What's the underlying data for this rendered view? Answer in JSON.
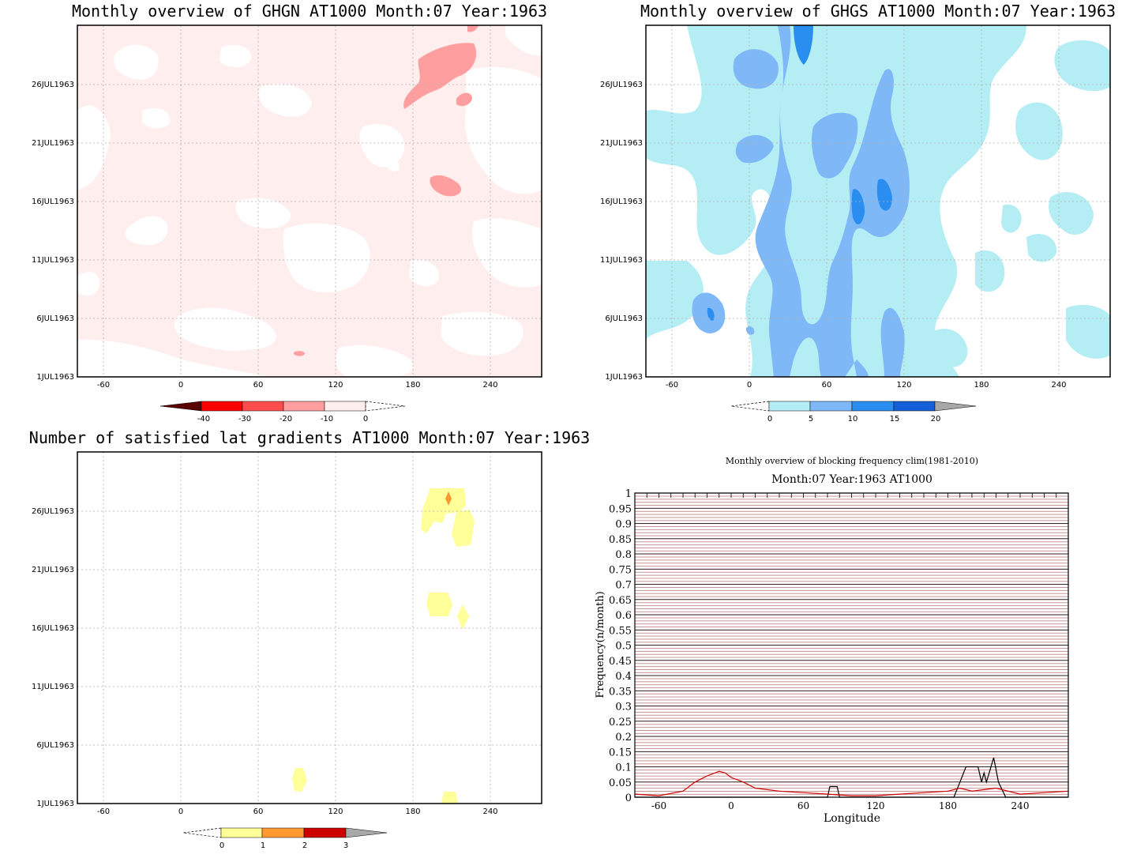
{
  "panels": {
    "ghgn": {
      "title": "Monthly overview of GHGN AT1000 Month:07 Year:1963"
    },
    "ghgs": {
      "title": "Monthly overview of GHGS AT1000 Month:07 Year:1963"
    },
    "lat": {
      "title": "Number of satisfied lat gradients AT1000 Month:07 Year:1963"
    },
    "freq": {
      "title": "Monthly overview of blocking frequency clim(1981-2010)",
      "subtitle": "Month:07 Year:1963  AT1000",
      "xlabel": "Longitude",
      "ylabel": "Frequency(n/month)"
    }
  },
  "date_ticks": [
    "26JUL1963",
    "21JUL1963",
    "16JUL1963",
    "11JUL1963",
    "6JUL1963",
    "1JUL1963"
  ],
  "lon_ticks": [
    "-60",
    "0",
    "60",
    "120",
    "180",
    "240"
  ],
  "colorbars": {
    "ghgn": {
      "labels": [
        "-40",
        "-30",
        "-20",
        "-10",
        "0"
      ],
      "colors": [
        "#ff0000",
        "#ff4d4d",
        "#ff9e9e",
        "#ffeeee"
      ],
      "end_color": "#5a0000"
    },
    "ghgs": {
      "labels": [
        "0",
        "5",
        "10",
        "15",
        "20"
      ],
      "colors": [
        "#b4eef4",
        "#7fb8f7",
        "#2a8ef0",
        "#1560d8"
      ],
      "end_color": "#a8a8a8"
    },
    "lat": {
      "labels": [
        "0",
        "1",
        "2",
        "3"
      ],
      "colors": [
        "#ffff99",
        "#ff9930",
        "#cc0000"
      ],
      "end_color": "#a8a8a8"
    }
  },
  "chart_data": [
    {
      "type": "heatmap",
      "title": "Monthly overview of GHGN AT1000 Month:07 Year:1963",
      "x_ticks": [
        -60,
        0,
        60,
        120,
        180,
        240
      ],
      "xlim": [
        -80,
        280
      ],
      "y_ticks": [
        "1JUL1963",
        "6JUL1963",
        "11JUL1963",
        "16JUL1963",
        "21JUL1963",
        "26JUL1963"
      ],
      "levels": [
        -40,
        -30,
        -20,
        -10,
        0
      ],
      "fill_colors": [
        "#ffeeee",
        "#ff9e9e"
      ]
    },
    {
      "type": "heatmap",
      "title": "Monthly overview of GHGS AT1000 Month:07 Year:1963",
      "x_ticks": [
        -60,
        0,
        60,
        120,
        180,
        240
      ],
      "xlim": [
        -80,
        280
      ],
      "y_ticks": [
        "1JUL1963",
        "6JUL1963",
        "11JUL1963",
        "16JUL1963",
        "21JUL1963",
        "26JUL1963"
      ],
      "levels": [
        0,
        5,
        10,
        15,
        20
      ],
      "fill_colors": [
        "#b4eef4",
        "#7fb8f7",
        "#2a8ef0",
        "#1560d8"
      ]
    },
    {
      "type": "heatmap",
      "title": "Number of satisfied lat gradients AT1000 Month:07 Year:1963",
      "x_ticks": [
        -60,
        0,
        60,
        120,
        180,
        240
      ],
      "xlim": [
        -80,
        280
      ],
      "y_ticks": [
        "1JUL1963",
        "6JUL1963",
        "11JUL1963",
        "16JUL1963",
        "21JUL1963",
        "26JUL1963"
      ],
      "levels": [
        0,
        1,
        2,
        3
      ],
      "fill_colors": [
        "#ffff99",
        "#ff9930"
      ]
    },
    {
      "type": "line",
      "title": "Monthly overview of blocking frequency clim(1981-2010)",
      "subtitle": "Month:07 Year:1963  AT1000",
      "xlabel": "Longitude",
      "ylabel": "Frequency(n/month)",
      "xlim": [
        -80,
        280
      ],
      "ylim": [
        0,
        1
      ],
      "x_ticks": [
        -60,
        0,
        60,
        120,
        180,
        240
      ],
      "y_ticks": [
        "0",
        "0.05",
        "0.1",
        "0.15",
        "0.2",
        "0.25",
        "0.3",
        "0.35",
        "0.4",
        "0.45",
        "0.5",
        "0.55",
        "0.6",
        "0.65",
        "0.7",
        "0.75",
        "0.8",
        "0.85",
        "0.9",
        "0.95",
        "1"
      ],
      "series": [
        {
          "color": "#000000",
          "x": [
            -80,
            80,
            82,
            88,
            90,
            92,
            180,
            185,
            190,
            195,
            200,
            205,
            208,
            210,
            212,
            215,
            218,
            222,
            228,
            280
          ],
          "y": [
            0,
            0,
            0.035,
            0.035,
            0,
            0,
            0,
            0,
            0.05,
            0.1,
            0.1,
            0.1,
            0.05,
            0.08,
            0.05,
            0.09,
            0.13,
            0.05,
            0,
            0
          ]
        },
        {
          "color": "#cc0000",
          "x": [
            -80,
            -60,
            -40,
            -30,
            -20,
            -10,
            -5,
            0,
            10,
            20,
            40,
            60,
            80,
            100,
            120,
            140,
            160,
            180,
            190,
            200,
            210,
            220,
            230,
            240,
            260,
            280
          ],
          "y": [
            0.01,
            0.005,
            0.02,
            0.05,
            0.07,
            0.085,
            0.08,
            0.065,
            0.05,
            0.03,
            0.02,
            0.015,
            0.01,
            0.005,
            0.005,
            0.01,
            0.015,
            0.02,
            0.03,
            0.02,
            0.025,
            0.03,
            0.02,
            0.01,
            0.015,
            0.02
          ]
        }
      ]
    }
  ]
}
